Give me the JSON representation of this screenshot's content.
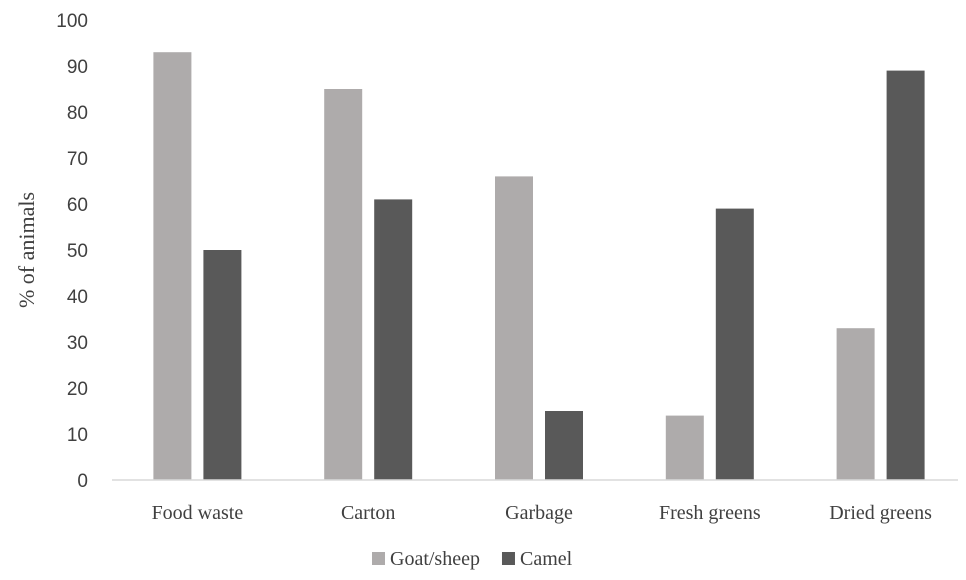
{
  "chart_data": {
    "type": "bar",
    "title": "",
    "xlabel": "",
    "ylabel": "% of animals",
    "ylim": [
      0,
      100
    ],
    "yticks": [
      0,
      10,
      20,
      30,
      40,
      50,
      60,
      70,
      80,
      90,
      100
    ],
    "grid": false,
    "legend_position": "bottom",
    "categories": [
      "Food waste",
      "Carton",
      "Garbage",
      "Fresh greens",
      "Dried greens"
    ],
    "series": [
      {
        "name": "Goat/sheep",
        "color": "#aeabab",
        "values": [
          93,
          85,
          66,
          14,
          33
        ]
      },
      {
        "name": "Camel",
        "color": "#595959",
        "values": [
          50,
          61,
          15,
          59,
          89
        ]
      }
    ]
  }
}
